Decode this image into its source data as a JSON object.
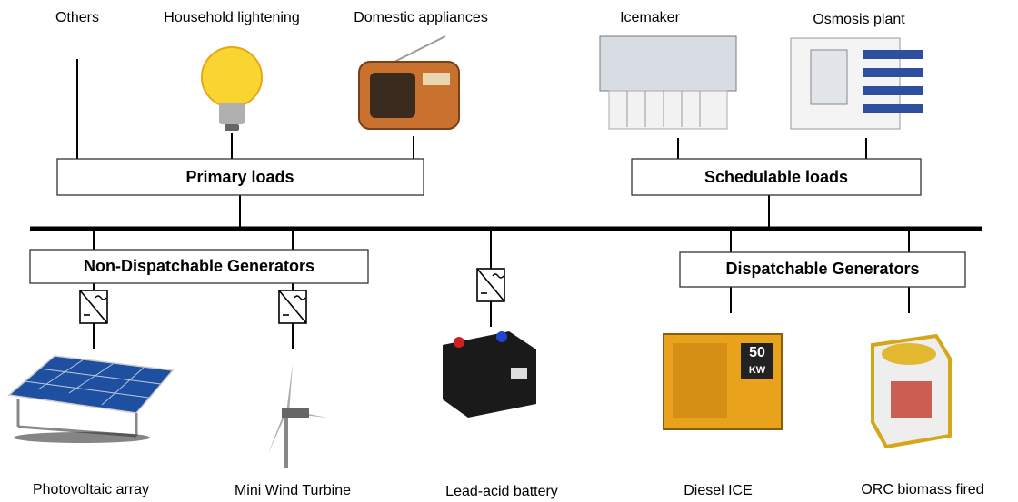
{
  "top_labels": [
    "Others",
    "Household lightening",
    "Domestic appliances",
    "Icemaker",
    "Osmosis plant"
  ],
  "load_groups": [
    "Primary loads",
    "Schedulable loads"
  ],
  "generator_groups": [
    "Non-Dispatchable Generators",
    "Dispatchable Generators"
  ],
  "bottom_labels": [
    "Photovoltaic array",
    "Mini Wind Turbine",
    "Lead-acid battery",
    "Diesel ICE",
    "ORC biomass fired"
  ],
  "diesel_plate": [
    "50",
    "KW"
  ]
}
